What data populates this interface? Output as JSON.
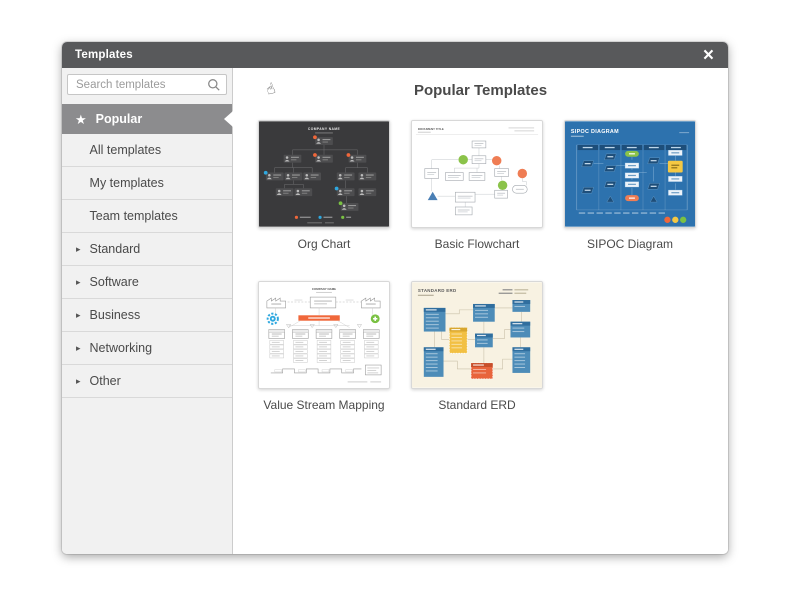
{
  "window": {
    "title": "Templates"
  },
  "icons": {
    "close": "×",
    "star": "★",
    "chevron_right": "▸",
    "hand_cursor": "☝",
    "search": "magnifier"
  },
  "search": {
    "placeholder": "Search templates",
    "value": ""
  },
  "sidebar": {
    "selected": {
      "label": "Popular"
    },
    "items": [
      {
        "label": "All templates",
        "expandable": false
      },
      {
        "label": "My templates",
        "expandable": false
      },
      {
        "label": "Team templates",
        "expandable": false
      },
      {
        "label": "Standard",
        "expandable": true
      },
      {
        "label": "Software",
        "expandable": true
      },
      {
        "label": "Business",
        "expandable": true
      },
      {
        "label": "Networking",
        "expandable": true
      },
      {
        "label": "Other",
        "expandable": true
      }
    ]
  },
  "main": {
    "heading": "Popular Templates",
    "templates": [
      {
        "caption": "Org Chart",
        "kind": "orgchart",
        "thumb_title": "COMPANY NAME"
      },
      {
        "caption": "Basic Flowchart",
        "kind": "flowchart",
        "thumb_title": "DOCUMENT TITLE"
      },
      {
        "caption": "SIPOC Diagram",
        "kind": "sipoc",
        "thumb_title": "SIPOC DIAGRAM"
      },
      {
        "caption": "Value Stream Mapping",
        "kind": "vsm",
        "thumb_title": "COMPANY NAME"
      },
      {
        "caption": "Standard ERD",
        "kind": "erd",
        "thumb_title": "STANDARD ERD"
      }
    ]
  },
  "colors": {
    "header_bar": "#58595b",
    "selected_gray": "#8c8c8e",
    "sidebar_bg": "#f1f1f1",
    "accent_orange": "#f0673a",
    "accent_blue": "#2fa8df",
    "accent_green": "#7ac143",
    "accent_yellow": "#f5c843",
    "orgchart_bg": "#3a3a3c",
    "sipoc_bg": "#2d72ae",
    "sipoc_dark": "#1d4e7a",
    "erd_bg": "#f8f2e2",
    "erd_blue": "#4d8cb8",
    "erd_blue_dark": "#306e9e",
    "erd_yellow": "#f2c043",
    "erd_yellow_dark": "#d8a62e",
    "erd_orange": "#e8643c",
    "erd_orange_dark": "#c74f2b"
  }
}
